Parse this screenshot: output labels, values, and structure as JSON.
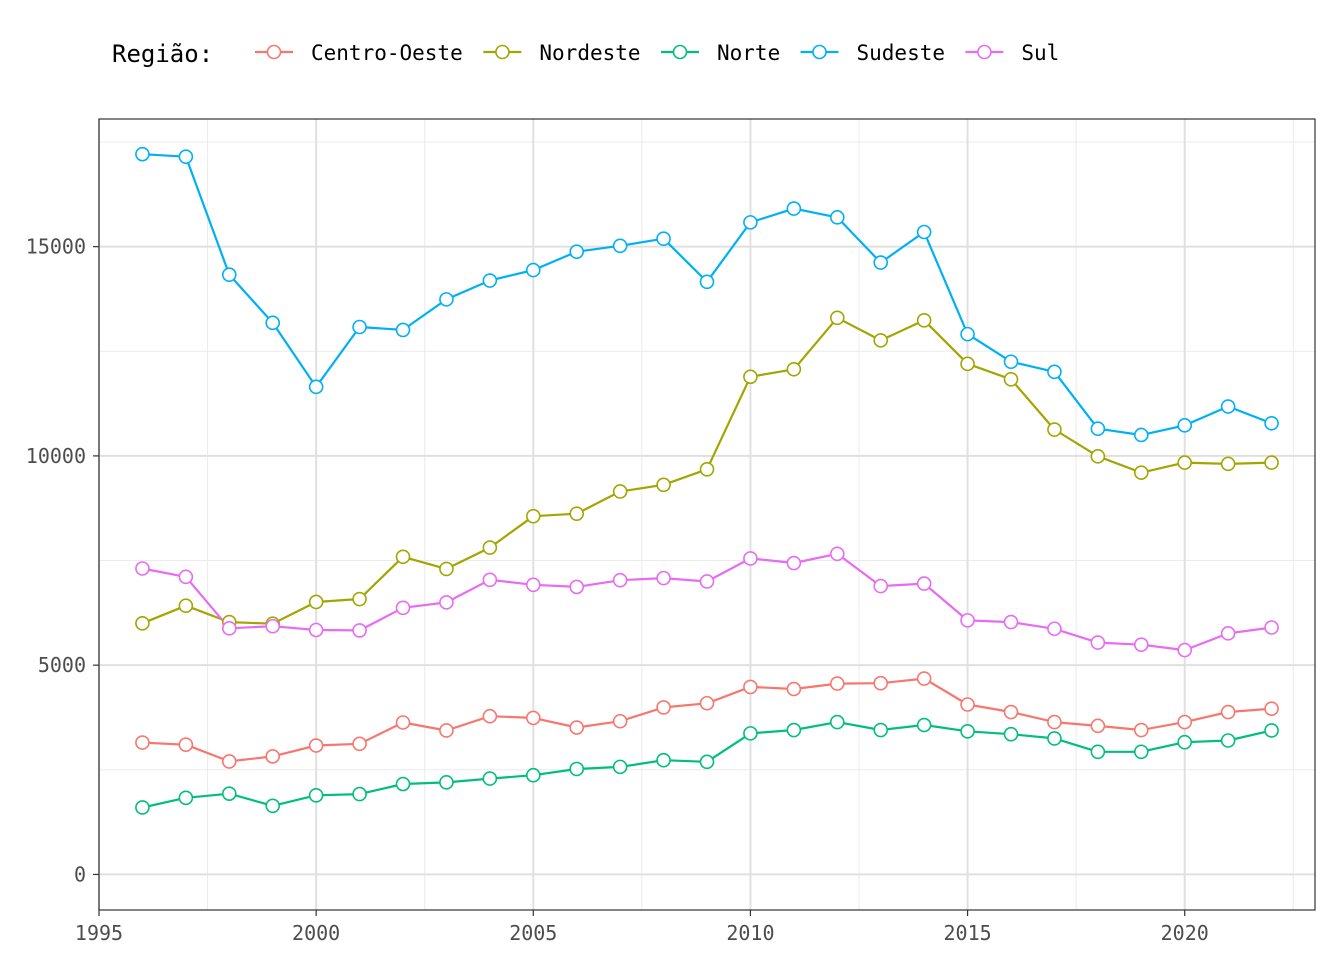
{
  "chart_data": {
    "type": "line",
    "legend": {
      "title": "Região:",
      "placement": "top-left"
    },
    "x": [
      1996,
      1997,
      1998,
      1999,
      2000,
      2001,
      2002,
      2003,
      2004,
      2005,
      2006,
      2007,
      2008,
      2009,
      2010,
      2011,
      2012,
      2013,
      2014,
      2015,
      2016,
      2017,
      2018,
      2019,
      2020,
      2021,
      2022
    ],
    "xlim": [
      1995,
      2023
    ],
    "ylim": [
      -850,
      18050
    ],
    "x_ticks": [
      1995,
      2000,
      2005,
      2010,
      2015,
      2020
    ],
    "x_tick_labels": [
      "1995",
      "2000",
      "2005",
      "2010",
      "2015",
      "2020"
    ],
    "y_ticks": [
      0,
      5000,
      10000,
      15000
    ],
    "y_tick_labels": [
      "0",
      "5000",
      "10000",
      "15000"
    ],
    "y_minor_ticks": [
      2500,
      7500,
      12500,
      17500
    ],
    "grid": true,
    "series": [
      {
        "name": "Centro-Oeste",
        "color": "#F8766D",
        "values": [
          3150,
          3100,
          2700,
          2820,
          3080,
          3120,
          3630,
          3440,
          3780,
          3740,
          3510,
          3660,
          3990,
          4090,
          4480,
          4430,
          4560,
          4570,
          4680,
          4060,
          3880,
          3640,
          3550,
          3450,
          3640,
          3880,
          3960
        ]
      },
      {
        "name": "Nordeste",
        "color": "#A3A500",
        "values": [
          6000,
          6420,
          6030,
          5990,
          6510,
          6580,
          7590,
          7300,
          7810,
          8560,
          8620,
          9150,
          9310,
          9680,
          11890,
          12070,
          13300,
          12760,
          13240,
          12200,
          11830,
          10630,
          9990,
          9600,
          9840,
          9810,
          9840
        ]
      },
      {
        "name": "Norte",
        "color": "#00BF7D",
        "values": [
          1600,
          1830,
          1930,
          1640,
          1890,
          1920,
          2160,
          2200,
          2290,
          2370,
          2520,
          2570,
          2730,
          2690,
          3370,
          3450,
          3640,
          3450,
          3570,
          3420,
          3350,
          3250,
          2930,
          2930,
          3160,
          3200,
          3440
        ]
      },
      {
        "name": "Sudeste",
        "color": "#00B0F6",
        "values": [
          17210,
          17150,
          14330,
          13180,
          11650,
          13080,
          13010,
          13740,
          14190,
          14440,
          14880,
          15020,
          15190,
          14160,
          15580,
          15910,
          15700,
          14620,
          15350,
          12910,
          12250,
          12010,
          10650,
          10500,
          10730,
          11180,
          10780
        ]
      },
      {
        "name": "Sul",
        "color": "#E76BF3",
        "values": [
          7310,
          7110,
          5880,
          5930,
          5840,
          5830,
          6370,
          6500,
          7040,
          6920,
          6870,
          7030,
          7080,
          7000,
          7550,
          7440,
          7660,
          6890,
          6950,
          6070,
          6030,
          5870,
          5540,
          5490,
          5360,
          5760,
          5900
        ]
      }
    ]
  }
}
